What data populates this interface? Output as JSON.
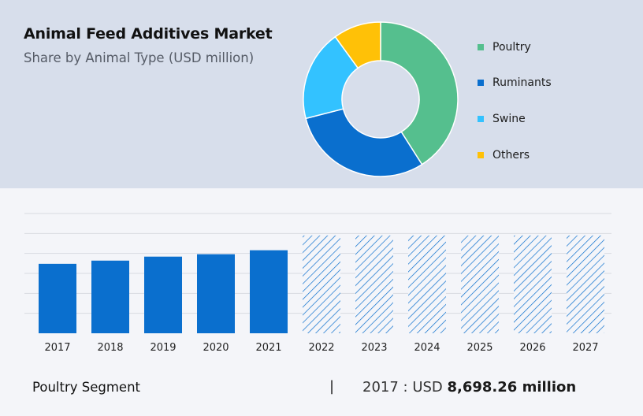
{
  "header": {
    "title": "Animal Feed Additives Market",
    "subtitle": "Share by Animal Type (USD million)"
  },
  "colors": {
    "header_bg": "#d7deeb",
    "poultry": "#55bf8e",
    "ruminants": "#0a6fce",
    "swine": "#33c2ff",
    "others": "#ffc107",
    "bar": "#0a6fce",
    "forecast_hatch": "#0a6fce"
  },
  "chart_data": [
    {
      "type": "pie",
      "variant": "donut",
      "title": "",
      "categories": [
        "Poultry",
        "Ruminants",
        "Swine",
        "Others"
      ],
      "values": [
        41,
        30,
        19,
        10
      ],
      "unit": "% share (estimated)",
      "legend": "right"
    },
    {
      "type": "bar",
      "title": "",
      "categories": [
        "2017",
        "2018",
        "2019",
        "2020",
        "2021",
        "2022",
        "2023",
        "2024",
        "2025",
        "2026",
        "2027"
      ],
      "values": [
        8698.26,
        9100,
        9600,
        9900,
        10400,
        null,
        null,
        null,
        null,
        null,
        null
      ],
      "forecast_categories": [
        "2022",
        "2023",
        "2024",
        "2025",
        "2026",
        "2027"
      ],
      "forecast_style": "hatched",
      "xlabel": "",
      "ylabel": "",
      "ylim": [
        0,
        15000
      ],
      "grid": true
    }
  ],
  "footer": {
    "segment": "Poultry Segment",
    "divider": "|",
    "value_prefix": "2017 : USD ",
    "value_bold": "8,698.26 million"
  }
}
